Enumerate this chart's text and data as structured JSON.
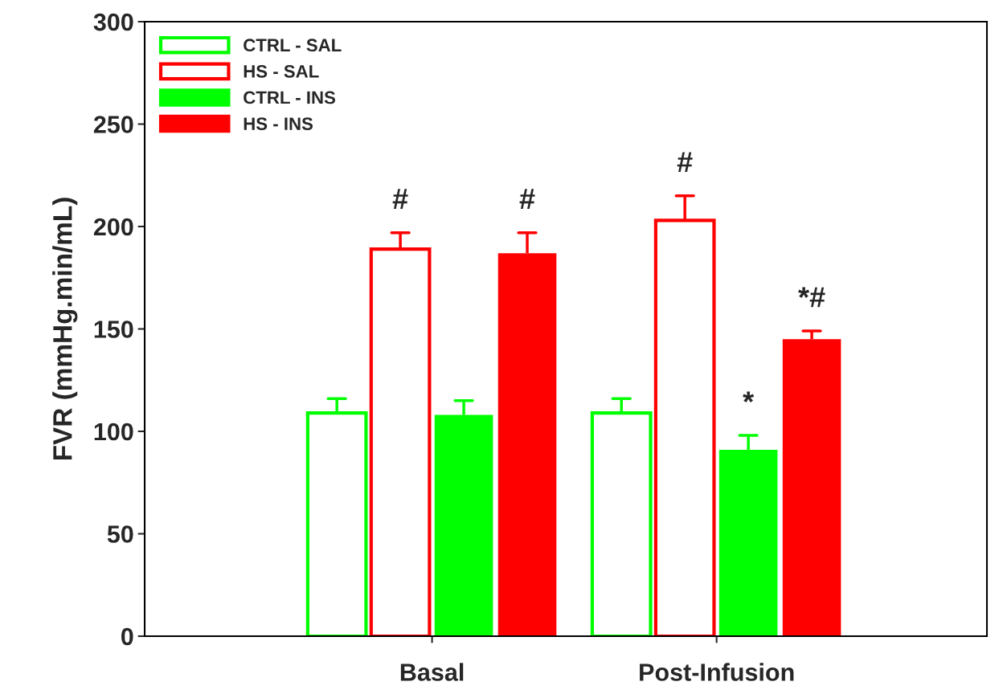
{
  "chart_data": {
    "type": "bar",
    "ylabel": "FVR (mmHg.min/mL)",
    "categories": [
      "Basal",
      "Post-Infusion"
    ],
    "series": [
      {
        "name": "CTRL - SAL",
        "color": "#00ff00",
        "colors": [
          "#ffffff",
          "#ffffff"
        ],
        "values": [
          109,
          109
        ],
        "errors": [
          7,
          7
        ]
      },
      {
        "name": "HS - SAL",
        "color": "#ff0000",
        "colors": [
          "#ffffff",
          "#ffffff"
        ],
        "values": [
          189,
          203
        ],
        "errors": [
          8,
          12
        ]
      },
      {
        "name": "CTRL - INS",
        "color": "#00ff00",
        "values": [
          108,
          91
        ],
        "errors": [
          7,
          7
        ]
      },
      {
        "name": "HS - INS",
        "color": "#ff0000",
        "values": [
          187,
          145
        ],
        "errors": [
          10,
          4
        ]
      }
    ],
    "annotations": [
      "#",
      "#",
      "#",
      "*",
      "*#"
    ],
    "ylim": [
      0,
      300
    ],
    "yticks": [
      0,
      50,
      100,
      150,
      200,
      250,
      300
    ],
    "grid": false,
    "legend": "top left"
  }
}
